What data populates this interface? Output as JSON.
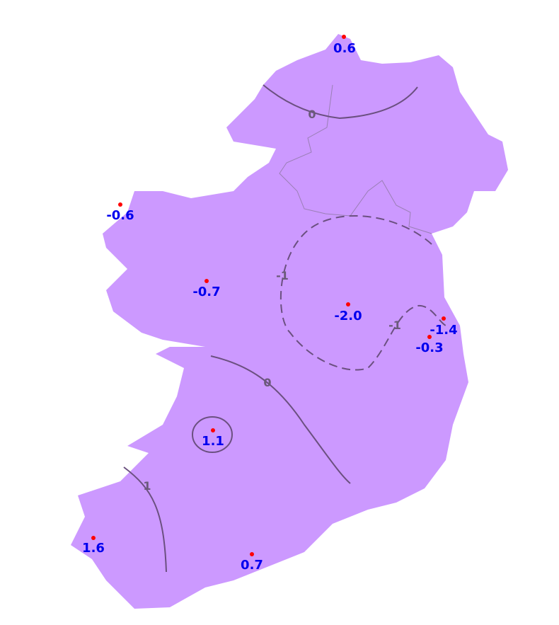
{
  "map": {
    "land_color": "#cc99ff",
    "contour_color": "#6b5080",
    "station_dot_color": "#ff0000",
    "station_label_color": "#0000ee",
    "stations": [
      {
        "value": "0.6"
      },
      {
        "value": "-0.6"
      },
      {
        "value": "-0.7"
      },
      {
        "value": "-2.0"
      },
      {
        "value": "-1.4"
      },
      {
        "value": "-0.3"
      },
      {
        "value": "1.1"
      },
      {
        "value": "1.6"
      },
      {
        "value": "0.7"
      }
    ],
    "contours": [
      {
        "level": "0",
        "style": "solid"
      },
      {
        "level": "-1",
        "style": "dashed"
      },
      {
        "level": "-1",
        "style": "dashed"
      },
      {
        "level": "0",
        "style": "solid"
      },
      {
        "level": "1",
        "style": "solid"
      }
    ]
  }
}
